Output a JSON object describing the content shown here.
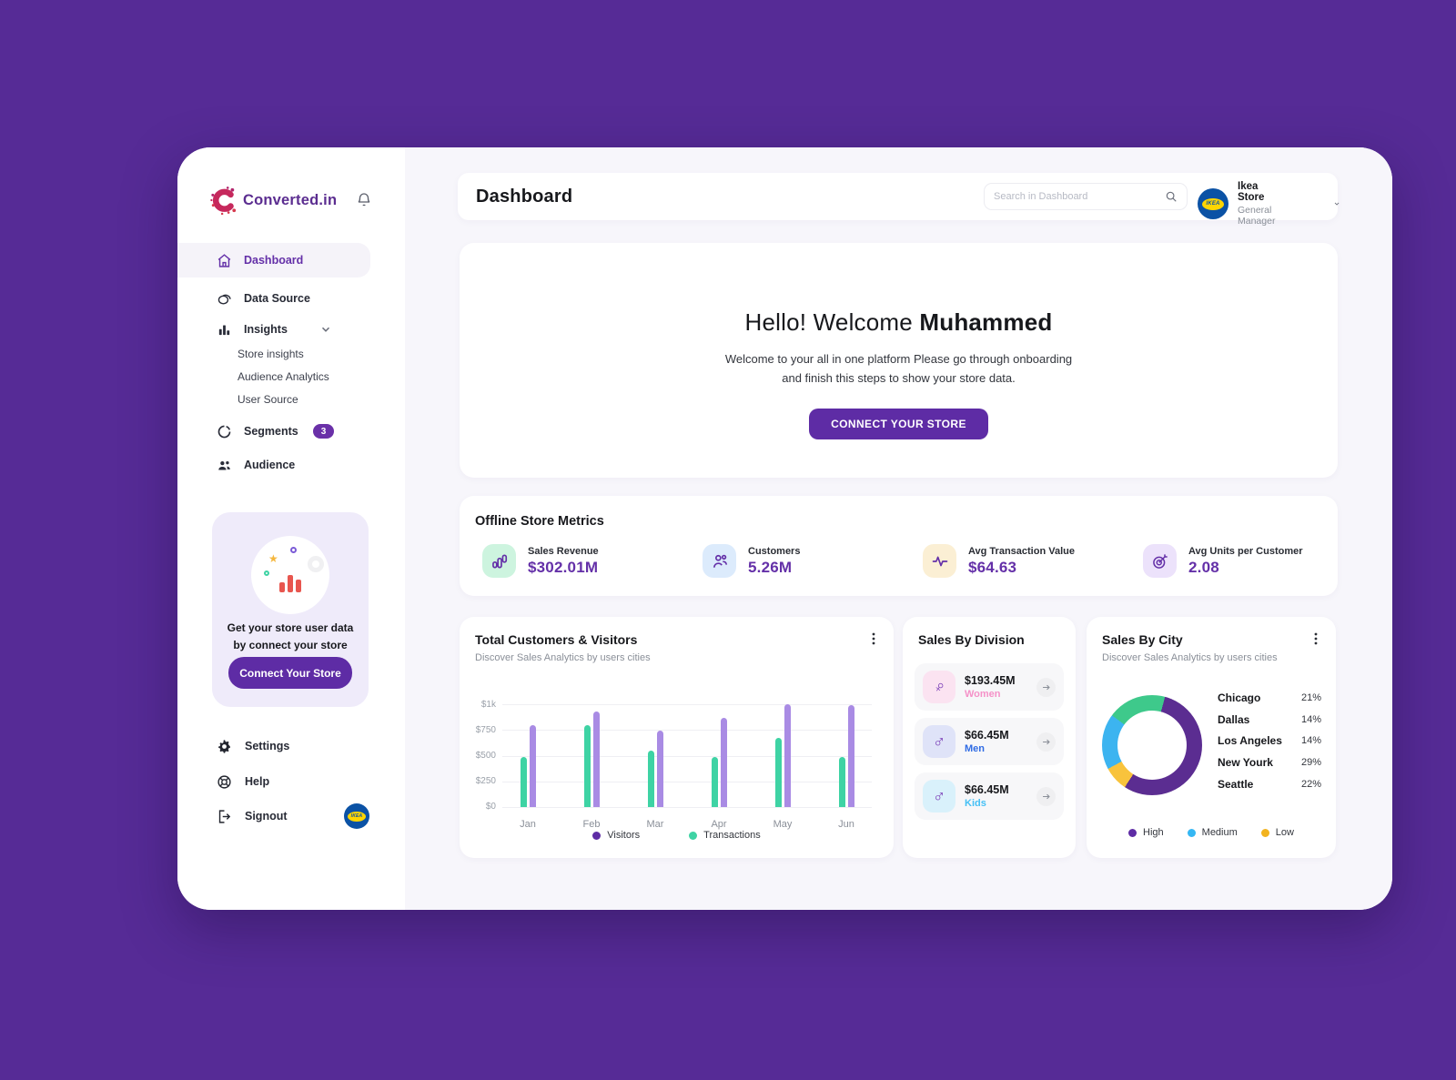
{
  "colors": {
    "page_bg": "#562B96",
    "accent_purple": "#5E2CA5",
    "brand_purple": "#5B2D90",
    "metric_value_purple": "#6430A8"
  },
  "sidebar": {
    "brand": "Converted.in",
    "nav": [
      {
        "label": "Dashboard",
        "active": true
      },
      {
        "label": "Data Source"
      },
      {
        "label": "Insights"
      },
      {
        "label": "Segments",
        "badge": "3"
      },
      {
        "label": "Audience"
      }
    ],
    "insights_children": [
      {
        "label": "Store insights"
      },
      {
        "label": "Audience Analytics"
      },
      {
        "label": "User Source"
      }
    ],
    "promo": {
      "text_line1": "Get your store user data",
      "text_line2": "by connect your store",
      "button_label": "Connect Your Store"
    },
    "footer_nav": [
      {
        "label": "Settings"
      },
      {
        "label": "Help"
      },
      {
        "label": "Signout"
      }
    ],
    "ikea_badge_text": "IKEA"
  },
  "header": {
    "title": "Dashboard",
    "search_placeholder": "Search in Dashboard",
    "user_name": "Ikea Store",
    "user_role": "General Manager",
    "avatar_text": "IKEA"
  },
  "welcome": {
    "greeting_regular": "Hello! Welcome",
    "greeting_bold": "Muhammed",
    "body_line1": "Welcome to your all in one platform Please go through onboarding",
    "body_line2": "and finish this steps to show your store data.",
    "button_label": "CONNECT YOUR STORE"
  },
  "metrics": {
    "title": "Offline Store Metrics",
    "items": [
      {
        "label": "Sales Revenue",
        "value": "$302.01M",
        "tile_bg": "#CDF4DF"
      },
      {
        "label": "Customers",
        "value": "5.26M",
        "tile_bg": "#DCEBFC"
      },
      {
        "label": "Avg Transaction Value",
        "value": "$64.63",
        "tile_bg": "#FBEFD4"
      },
      {
        "label": "Avg Units per Customer",
        "value": "2.08",
        "tile_bg": "#ECE2FB"
      }
    ]
  },
  "division": {
    "title": "Sales By Division",
    "items": [
      {
        "value": "$193.45M",
        "label": "Women",
        "label_color": "#F591C8",
        "tile_bg": "#FBE3F1",
        "icon": "female-symbol"
      },
      {
        "value": "$66.45M",
        "label": "Men",
        "label_color": "#2F6BE4",
        "tile_bg": "#DFE3F8",
        "icon": "male-symbol"
      },
      {
        "value": "$66.45M",
        "label": "Kids",
        "label_color": "#45C0F5",
        "tile_bg": "#D9F1FB",
        "icon": "male-symbol"
      }
    ]
  },
  "chart_data": [
    {
      "type": "bar",
      "title": "Total Customers & Visitors",
      "subtitle": "Discover Sales Analytics by users cities",
      "categories": [
        "Jan",
        "Feb",
        "Mar",
        "Apr",
        "May",
        "Jun"
      ],
      "series": [
        {
          "name": "Visitors",
          "color": "#A98BE4",
          "legend_color": "#5E2CA5",
          "values": [
            800,
            925,
            740,
            865,
            1000,
            995
          ]
        },
        {
          "name": "Transactions",
          "color": "#3ED3A4",
          "legend_color": "#3ED3A4",
          "values": [
            490,
            800,
            550,
            490,
            675,
            490
          ]
        }
      ],
      "bar_order_left_to_right": [
        "Transactions",
        "Visitors"
      ],
      "ylim": [
        0,
        1000
      ],
      "yticks_top_down": [
        "$1k",
        "$750",
        "$500",
        "$250",
        "$0"
      ],
      "grid": true,
      "legend_position": "bottom"
    },
    {
      "type": "pie",
      "title": "Sales By City",
      "subtitle": "Discover Sales Analytics by users cities",
      "donut": true,
      "segments_clockwise_from_top": [
        {
          "label": "High",
          "color": "#5B2D91",
          "value": 55
        },
        {
          "label": "Low",
          "color": "#F8C33C",
          "value": 8
        },
        {
          "label": "Medium",
          "color": "#3CB4F0",
          "value": 18
        },
        {
          "label": "unlabeled-green",
          "color": "#3EC98B",
          "value": 19
        }
      ],
      "start_angle_deg": 15,
      "cities": [
        {
          "name": "Chicago",
          "pct": "21%"
        },
        {
          "name": "Dallas",
          "pct": "14%"
        },
        {
          "name": "Los Angeles",
          "pct": "14%"
        },
        {
          "name": "New Yourk",
          "pct": "29%"
        },
        {
          "name": "Seattle",
          "pct": "22%"
        }
      ],
      "legend": [
        {
          "label": "High",
          "color": "#5E2CA5"
        },
        {
          "label": "Medium",
          "color": "#35B7F3"
        },
        {
          "label": "Low",
          "color": "#F2B31F"
        }
      ],
      "legend_position": "bottom"
    }
  ]
}
